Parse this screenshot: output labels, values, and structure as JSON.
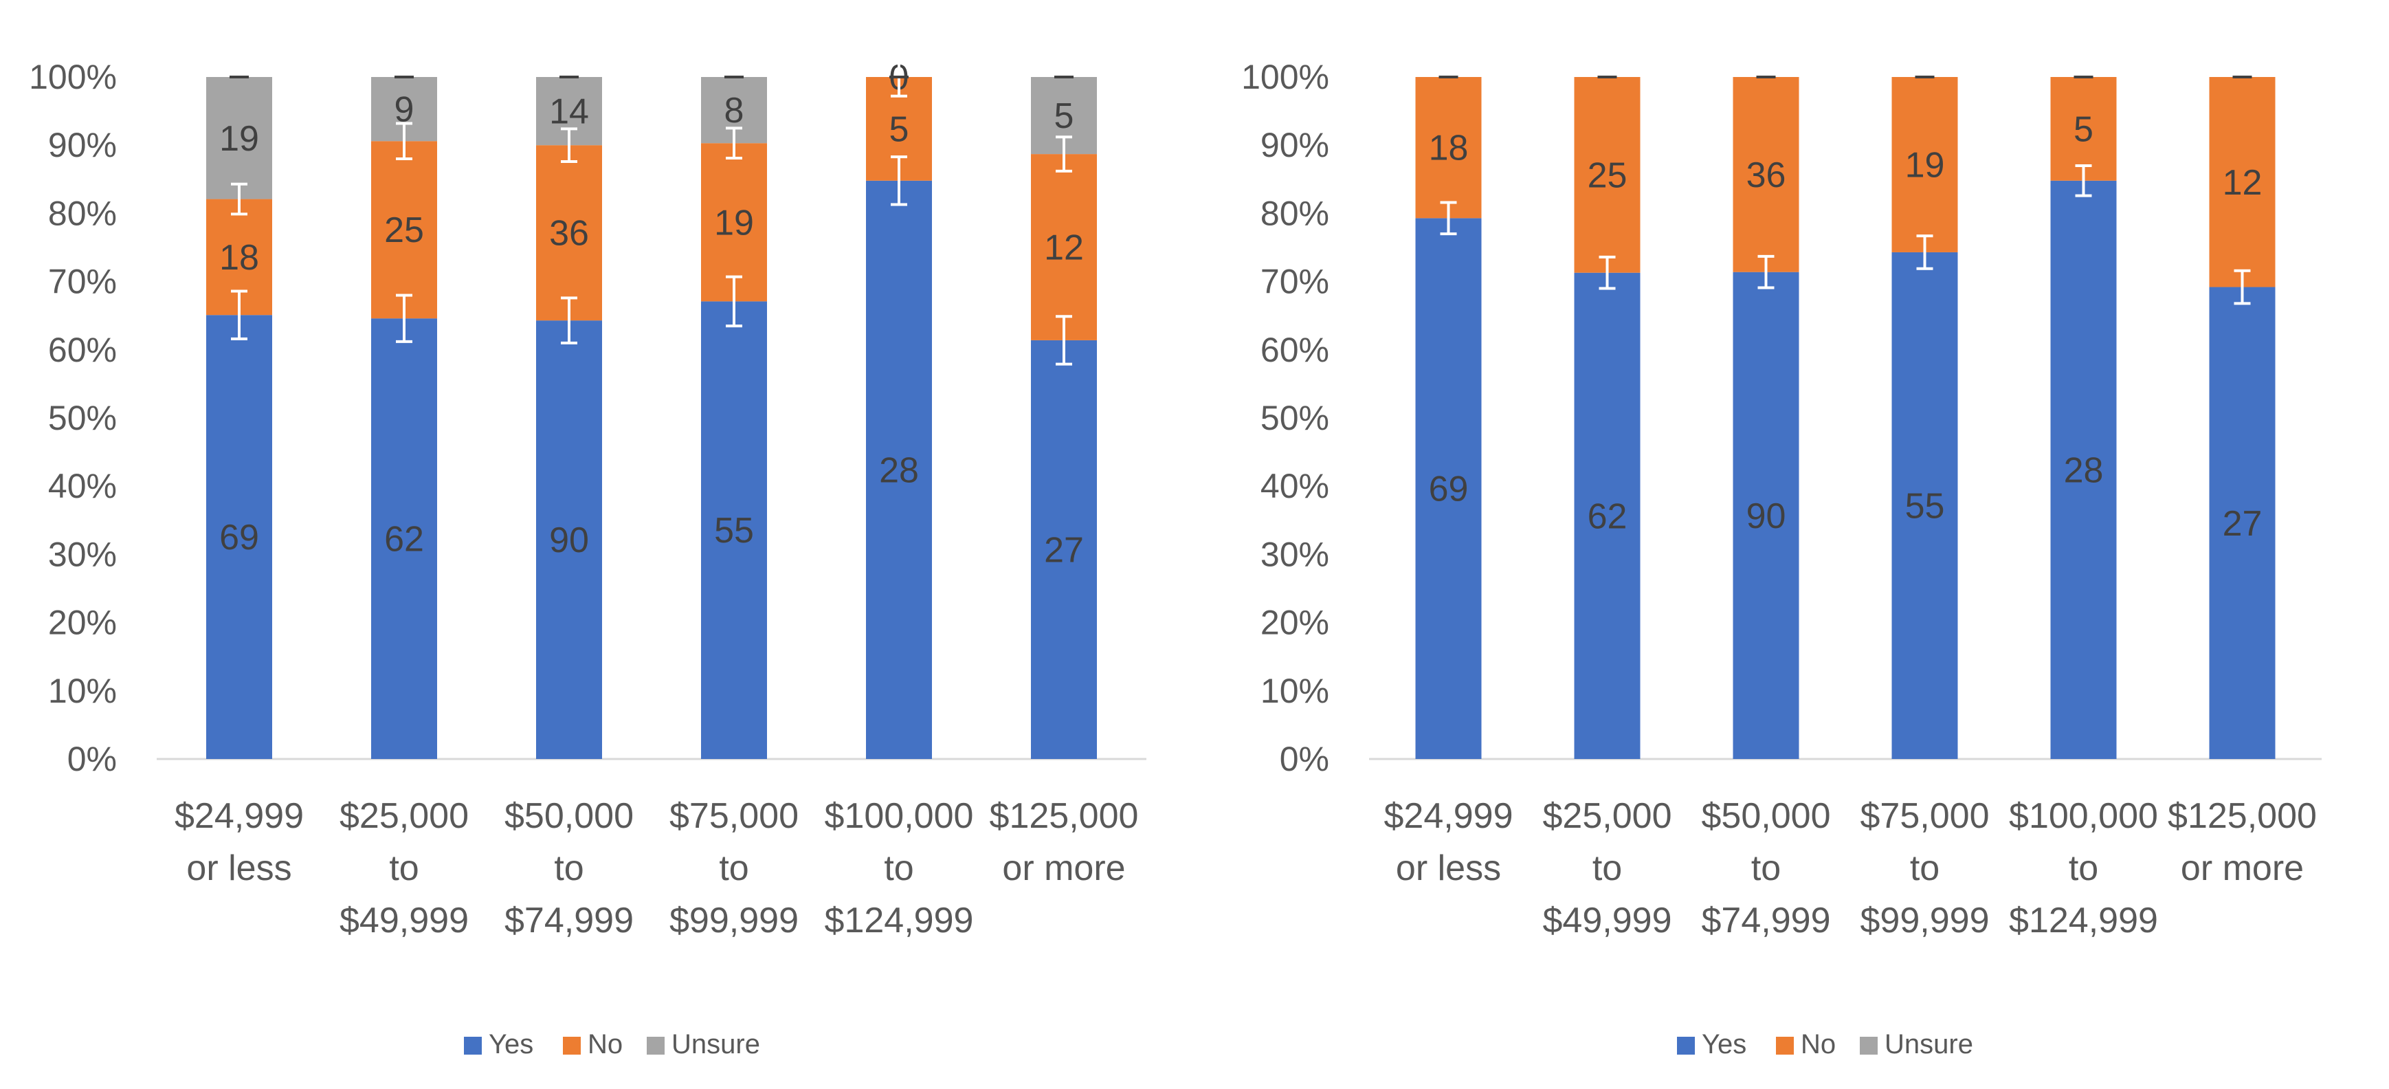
{
  "chart_data": [
    {
      "type": "bar",
      "stacked": true,
      "categories": [
        [
          "$24,999",
          "or less"
        ],
        [
          "$25,000",
          "to",
          "$49,999"
        ],
        [
          "$50,000",
          "to",
          "$74,999"
        ],
        [
          "$75,000",
          "to",
          "$99,999"
        ],
        [
          "$100,000",
          "to",
          "$124,999"
        ],
        [
          "$125,000",
          "or more"
        ]
      ],
      "series": [
        {
          "name": "Yes",
          "color": "#4472C4",
          "counts": [
            69,
            62,
            90,
            55,
            28,
            27
          ],
          "percent": [
            65.1,
            64.6,
            64.3,
            67.1,
            84.8,
            61.4
          ],
          "error": [
            3.5,
            3.4,
            3.3,
            3.6,
            3.5,
            3.5
          ]
        },
        {
          "name": "No",
          "color": "#ED7D31",
          "counts": [
            18,
            25,
            36,
            19,
            5,
            12
          ],
          "percent": [
            17.0,
            26.0,
            25.7,
            23.2,
            15.2,
            27.3
          ],
          "error": [
            2.2,
            2.6,
            2.4,
            2.2,
            2.8,
            2.5
          ]
        },
        {
          "name": "Unsure",
          "color": "#A5A5A5",
          "counts": [
            19,
            9,
            14,
            8,
            0,
            5
          ],
          "percent": [
            17.9,
            9.4,
            10.0,
            9.7,
            0.0,
            11.3
          ],
          "error": [
            0,
            0,
            0,
            0,
            0,
            0
          ]
        }
      ],
      "y_ticks": [
        "0%",
        "10%",
        "20%",
        "30%",
        "40%",
        "50%",
        "60%",
        "70%",
        "80%",
        "90%",
        "100%"
      ],
      "ylim": [
        0,
        100
      ],
      "grid": false,
      "legend": "bottom-center"
    },
    {
      "type": "bar",
      "stacked": true,
      "categories": [
        [
          "$24,999",
          "or less"
        ],
        [
          "$25,000",
          "to",
          "$49,999"
        ],
        [
          "$50,000",
          "to",
          "$74,999"
        ],
        [
          "$75,000",
          "to",
          "$99,999"
        ],
        [
          "$100,000",
          "to",
          "$124,999"
        ],
        [
          "$125,000",
          "or more"
        ]
      ],
      "series": [
        {
          "name": "Yes",
          "color": "#4472C4",
          "counts": [
            69,
            62,
            90,
            55,
            28,
            27
          ],
          "percent": [
            79.3,
            71.3,
            71.4,
            74.3,
            84.8,
            69.2
          ],
          "error": [
            2.3,
            2.3,
            2.3,
            2.4,
            2.2,
            2.4
          ]
        },
        {
          "name": "No",
          "color": "#ED7D31",
          "counts": [
            18,
            25,
            36,
            19,
            5,
            12
          ],
          "percent": [
            20.7,
            28.7,
            28.6,
            25.7,
            15.2,
            30.8
          ],
          "error": [
            0,
            0,
            0,
            0,
            0,
            0
          ]
        },
        {
          "name": "Unsure",
          "color": "#A5A5A5",
          "counts": [
            null,
            null,
            null,
            null,
            null,
            null
          ],
          "percent": [
            0,
            0,
            0,
            0,
            0,
            0
          ],
          "error": [
            0,
            0,
            0,
            0,
            0,
            0
          ]
        }
      ],
      "y_ticks": [
        "0%",
        "10%",
        "20%",
        "30%",
        "40%",
        "50%",
        "60%",
        "70%",
        "80%",
        "90%",
        "100%"
      ],
      "ylim": [
        0,
        100
      ],
      "grid": false,
      "legend": "bottom-center"
    }
  ]
}
